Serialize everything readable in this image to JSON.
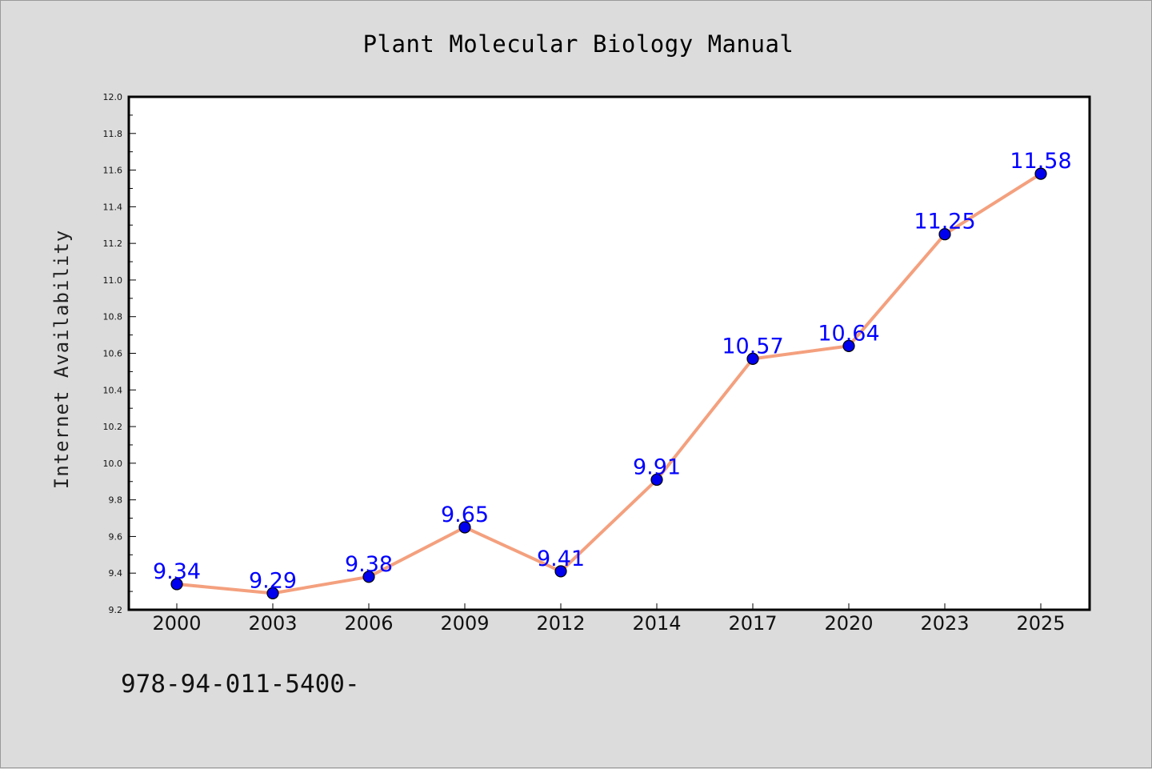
{
  "chart_data": {
    "type": "line",
    "title": "Plant Molecular Biology Manual",
    "xlabel": "",
    "ylabel": "Internet Availability",
    "categories": [
      "2000",
      "2003",
      "2006",
      "2009",
      "2012",
      "2014",
      "2017",
      "2020",
      "2023",
      "2025"
    ],
    "series": [
      {
        "values": [
          9.34,
          9.29,
          9.38,
          9.65,
          9.41,
          9.91,
          10.57,
          10.64,
          11.25,
          11.58
        ]
      }
    ],
    "data_labels": [
      "9.34",
      "9.29",
      "9.38",
      "9.65",
      "9.41",
      "9.91",
      "10.57",
      "10.64",
      "11.25",
      "11.58"
    ],
    "ylim": [
      9.2,
      12.0
    ],
    "y_ticks": [
      "9.2",
      "9.4",
      "9.6",
      "9.8",
      "10.0",
      "10.2",
      "10.4",
      "10.6",
      "10.8",
      "11.0",
      "11.2",
      "11.4",
      "11.6",
      "11.8",
      "12.0"
    ],
    "grid": false,
    "line_color": "#f4a07e",
    "marker_color": "#0000ee",
    "label_color": "#0000ff",
    "plot_background": "#ffffff",
    "figure_background": "#dcdcdc"
  },
  "footnote": "978-94-011-5400-"
}
